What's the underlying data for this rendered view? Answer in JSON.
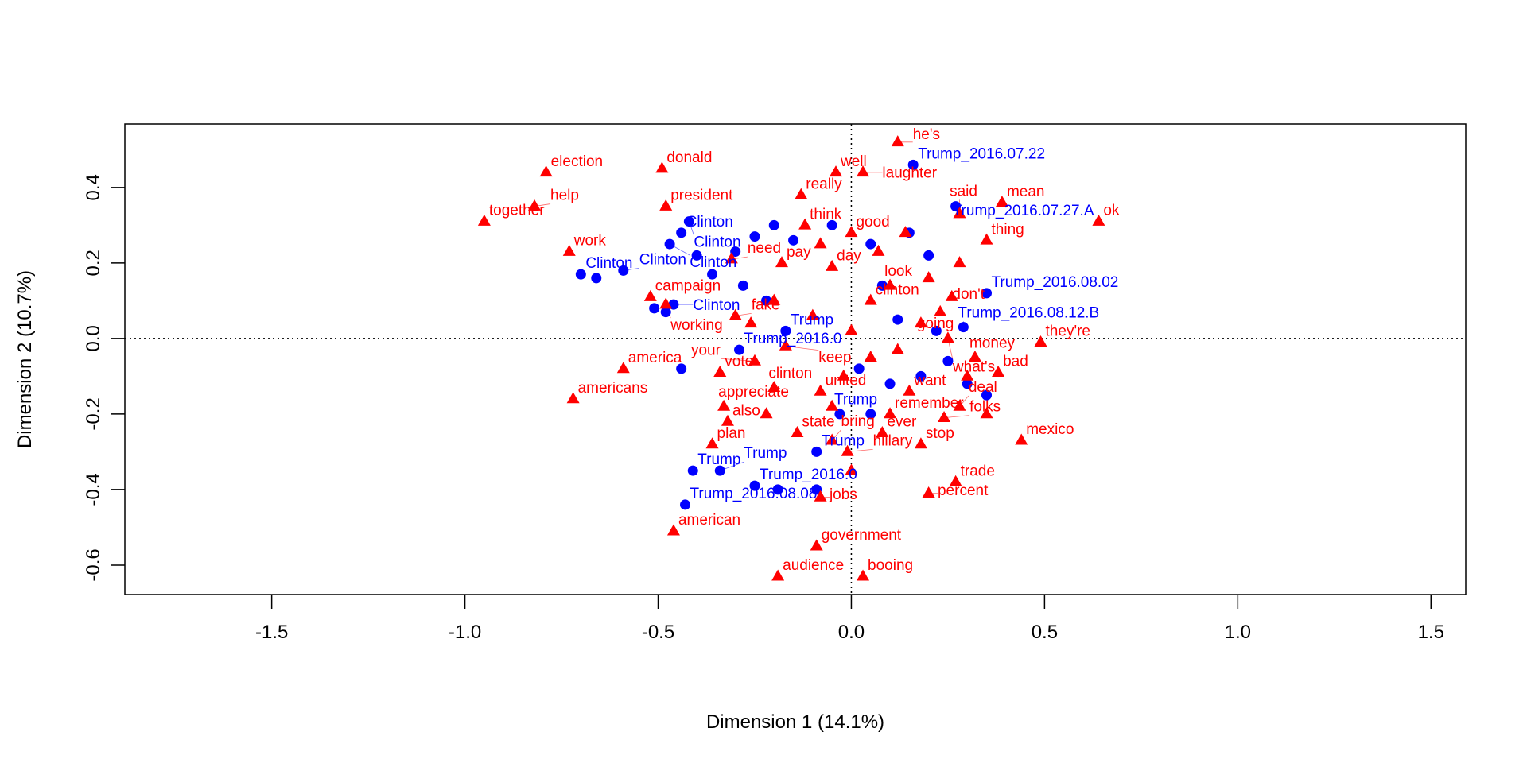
{
  "chart_data": {
    "type": "scatter",
    "title": "",
    "xlabel": "Dimension 1 (14.1%)",
    "ylabel": "Dimension 2 (10.7%)",
    "xlim": [
      -1.88,
      1.59
    ],
    "ylim": [
      -0.678,
      0.568
    ],
    "xticks": [
      -1.5,
      -1.0,
      -0.5,
      0.0,
      0.5,
      1.0,
      1.5
    ],
    "xtick_labels": [
      "-1.5",
      "-1.0",
      "-0.5",
      "0.0",
      "0.5",
      "1.0",
      "1.5"
    ],
    "yticks": [
      -0.6,
      -0.4,
      -0.2,
      0.0,
      0.2,
      0.4
    ],
    "ytick_labels": [
      "-0.6",
      "-0.4",
      "-0.2",
      "0.0",
      "0.2",
      "0.4"
    ],
    "reference_lines": {
      "x": 0,
      "y": 0,
      "style": "dotted"
    },
    "grid": false,
    "series": [
      {
        "marker": "circle",
        "color": "#0000FF",
        "points": [
          [
            0.16,
            0.46,
            "Trump_2016.07.22"
          ],
          [
            0.27,
            0.35,
            "Trump_2016.07.27.A"
          ],
          [
            0.35,
            0.12,
            "Trump_2016.08.02"
          ],
          [
            0.29,
            0.03,
            "Trump_2016.08.12.B"
          ],
          [
            -0.43,
            -0.44,
            "Trump_2016.08.08"
          ],
          [
            -0.7,
            0.17,
            "Clinton"
          ],
          [
            -0.66,
            0.16,
            ""
          ],
          [
            -0.59,
            0.18,
            "Clinton"
          ],
          [
            -0.51,
            0.08,
            ""
          ],
          [
            -0.48,
            0.07,
            ""
          ],
          [
            -0.46,
            0.09,
            "Clinton"
          ],
          [
            -0.44,
            0.28,
            "Clinton"
          ],
          [
            -0.42,
            0.31,
            "Clinton"
          ],
          [
            -0.47,
            0.25,
            "Clinton"
          ],
          [
            -0.4,
            0.22,
            ""
          ],
          [
            -0.36,
            0.17,
            ""
          ],
          [
            -0.3,
            0.23,
            ""
          ],
          [
            -0.25,
            0.27,
            ""
          ],
          [
            -0.2,
            0.3,
            ""
          ],
          [
            -0.15,
            0.26,
            ""
          ],
          [
            -0.28,
            0.14,
            ""
          ],
          [
            -0.22,
            0.1,
            ""
          ],
          [
            -0.17,
            0.02,
            "Trump"
          ],
          [
            -0.29,
            -0.03,
            "Trump_2016.0"
          ],
          [
            -0.44,
            -0.08,
            ""
          ],
          [
            -0.41,
            -0.35,
            "Trump"
          ],
          [
            -0.34,
            -0.35,
            "Trump"
          ],
          [
            -0.25,
            -0.39,
            "Trump_2016.0"
          ],
          [
            -0.19,
            -0.4,
            ""
          ],
          [
            -0.09,
            -0.3,
            "Trump"
          ],
          [
            -0.03,
            -0.2,
            "Trump"
          ],
          [
            0.05,
            -0.2,
            ""
          ],
          [
            0.1,
            -0.12,
            ""
          ],
          [
            0.18,
            -0.1,
            ""
          ],
          [
            0.25,
            -0.06,
            ""
          ],
          [
            0.3,
            -0.12,
            ""
          ],
          [
            0.35,
            -0.15,
            ""
          ],
          [
            0.22,
            0.02,
            ""
          ],
          [
            0.12,
            0.05,
            ""
          ],
          [
            0.05,
            0.25,
            ""
          ],
          [
            0.15,
            0.28,
            ""
          ],
          [
            0.2,
            0.22,
            ""
          ],
          [
            -0.05,
            0.3,
            ""
          ],
          [
            0.08,
            0.14,
            ""
          ],
          [
            0.02,
            -0.08,
            ""
          ],
          [
            -0.09,
            -0.4,
            ""
          ]
        ]
      },
      {
        "marker": "triangle",
        "color": "#FF0000",
        "points": [
          [
            0.12,
            0.52,
            "he's"
          ],
          [
            -0.79,
            0.44,
            "election"
          ],
          [
            -0.49,
            0.45,
            "donald"
          ],
          [
            -0.82,
            0.35,
            "help"
          ],
          [
            -0.95,
            0.31,
            "together"
          ],
          [
            -0.48,
            0.35,
            "president"
          ],
          [
            -0.73,
            0.23,
            "work"
          ],
          [
            -0.04,
            0.44,
            "well"
          ],
          [
            0.03,
            0.44,
            "laughter"
          ],
          [
            -0.13,
            0.38,
            "really"
          ],
          [
            0.39,
            0.36,
            "mean"
          ],
          [
            0.28,
            0.33,
            "said"
          ],
          [
            0.64,
            0.31,
            "ok"
          ],
          [
            0.35,
            0.26,
            "thing"
          ],
          [
            0.26,
            0.11,
            "don't"
          ],
          [
            0.23,
            0.07,
            "going"
          ],
          [
            -0.52,
            0.11,
            "campaign"
          ],
          [
            -0.48,
            0.09,
            "working"
          ],
          [
            -0.31,
            0.21,
            "need"
          ],
          [
            -0.18,
            0.2,
            "pay"
          ],
          [
            -0.05,
            0.19,
            "day"
          ],
          [
            0.1,
            0.14,
            "look"
          ],
          [
            0.05,
            0.1,
            "clinton"
          ],
          [
            -0.17,
            -0.02,
            "keep"
          ],
          [
            -0.59,
            -0.08,
            "america"
          ],
          [
            -0.72,
            -0.16,
            "americans"
          ],
          [
            -0.34,
            -0.09,
            "vote"
          ],
          [
            -0.25,
            -0.06,
            "your"
          ],
          [
            -0.33,
            -0.18,
            "appreciate"
          ],
          [
            -0.32,
            -0.22,
            "also"
          ],
          [
            -0.36,
            -0.28,
            "plan"
          ],
          [
            -0.2,
            -0.13,
            "clinton"
          ],
          [
            -0.08,
            -0.14,
            "united"
          ],
          [
            -0.14,
            -0.25,
            "state"
          ],
          [
            -0.01,
            -0.3,
            "hillary"
          ],
          [
            -0.05,
            -0.27,
            "bring"
          ],
          [
            0.18,
            -0.28,
            "stop"
          ],
          [
            0.44,
            -0.27,
            "mexico"
          ],
          [
            0.27,
            -0.38,
            "trade"
          ],
          [
            0.2,
            -0.41,
            "percent"
          ],
          [
            -0.08,
            -0.42,
            "jobs"
          ],
          [
            -0.46,
            -0.51,
            "american"
          ],
          [
            -0.09,
            -0.55,
            "government"
          ],
          [
            -0.19,
            -0.63,
            "audience"
          ],
          [
            0.03,
            -0.63,
            "booing"
          ],
          [
            0.32,
            -0.05,
            "money"
          ],
          [
            0.38,
            -0.09,
            "bad"
          ],
          [
            0.49,
            -0.01,
            "they're"
          ],
          [
            0.15,
            -0.14,
            "want"
          ],
          [
            0.28,
            -0.18,
            "deal"
          ],
          [
            0.1,
            -0.2,
            "remember"
          ],
          [
            0.24,
            -0.21,
            "folks"
          ],
          [
            0.08,
            -0.25,
            "ever"
          ],
          [
            0.25,
            0.0,
            "what's"
          ],
          [
            -0.12,
            0.3,
            "think"
          ],
          [
            0.0,
            0.28,
            "good"
          ],
          [
            -0.3,
            0.06,
            "fake"
          ],
          [
            -0.26,
            0.04,
            ""
          ],
          [
            -0.2,
            0.1,
            ""
          ],
          [
            -0.1,
            0.06,
            ""
          ],
          [
            0.0,
            0.02,
            ""
          ],
          [
            0.05,
            -0.05,
            ""
          ],
          [
            0.12,
            -0.03,
            ""
          ],
          [
            0.18,
            0.04,
            ""
          ],
          [
            0.3,
            -0.1,
            ""
          ],
          [
            0.35,
            -0.2,
            ""
          ],
          [
            -0.02,
            -0.1,
            ""
          ],
          [
            -0.05,
            -0.18,
            ""
          ],
          [
            0.14,
            0.28,
            ""
          ],
          [
            0.07,
            0.23,
            ""
          ],
          [
            -0.08,
            0.25,
            ""
          ],
          [
            0.2,
            0.16,
            ""
          ],
          [
            0.28,
            0.2,
            ""
          ],
          [
            -0.22,
            -0.2,
            ""
          ],
          [
            0.0,
            -0.35,
            ""
          ]
        ]
      }
    ]
  }
}
